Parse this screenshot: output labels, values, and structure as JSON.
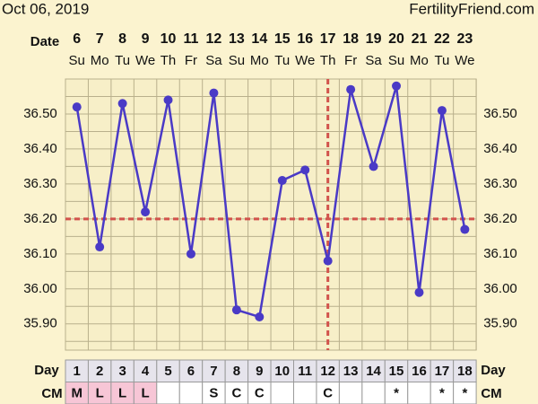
{
  "chart_data": {
    "type": "line",
    "title": "Oct 06, 2019",
    "site": "FertilityFriend.com",
    "date_label": "Date",
    "day_label": "Day",
    "cm_label": "CM",
    "categories": [
      "6",
      "7",
      "8",
      "9",
      "10",
      "11",
      "12",
      "13",
      "14",
      "15",
      "16",
      "17",
      "18",
      "19",
      "20",
      "21",
      "22",
      "23"
    ],
    "weekdays": [
      "Su",
      "Mo",
      "Tu",
      "We",
      "Th",
      "Fr",
      "Sa",
      "Su",
      "Mo",
      "Tu",
      "We",
      "Th",
      "Fr",
      "Sa",
      "Su",
      "Mo",
      "Tu",
      "We"
    ],
    "cycle_days": [
      1,
      2,
      3,
      4,
      5,
      6,
      7,
      8,
      9,
      10,
      11,
      12,
      13,
      14,
      15,
      16,
      17,
      18
    ],
    "cm": [
      "M",
      "L",
      "L",
      "L",
      null,
      null,
      "S",
      "C",
      "C",
      null,
      null,
      "C",
      null,
      null,
      "*",
      null,
      "*",
      "*"
    ],
    "cm_highlight": "#f7c6d6",
    "series": [
      {
        "color": "#4a3ac6",
        "values": [
          36.52,
          36.12,
          36.53,
          36.22,
          36.54,
          36.1,
          36.56,
          35.94,
          35.92,
          36.31,
          36.34,
          36.08,
          36.57,
          36.35,
          36.58,
          35.99,
          36.51,
          36.17
        ]
      }
    ],
    "coverline": 36.2,
    "ovulation_cycle_day": 12,
    "marker_color": "#d2534c",
    "ylim": [
      35.825,
      36.6
    ],
    "yticks": [
      {
        "value": 35.9,
        "label": "35.90"
      },
      {
        "value": 36.0,
        "label": "36.00"
      },
      {
        "value": 36.1,
        "label": "36.10"
      },
      {
        "value": 36.2,
        "label": "36.20"
      },
      {
        "value": 36.3,
        "label": "36.30"
      },
      {
        "value": 36.4,
        "label": "36.40"
      },
      {
        "value": 36.5,
        "label": "36.50"
      }
    ],
    "grid": true
  }
}
